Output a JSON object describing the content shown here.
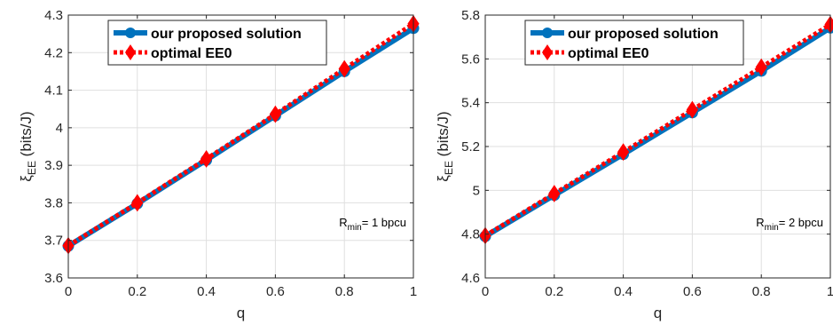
{
  "chart_data": [
    {
      "type": "line",
      "x": [
        0,
        0.2,
        0.4,
        0.6,
        0.8,
        1
      ],
      "xlim": [
        0,
        1
      ],
      "ylim": [
        3.6,
        4.3
      ],
      "xticks": [
        "0",
        "0.2",
        "0.4",
        "0.6",
        "0.8",
        "1"
      ],
      "yticks": [
        "3.6",
        "3.7",
        "3.8",
        "3.9",
        "4",
        "4.1",
        "4.2",
        "4.3"
      ],
      "xlabel": "q",
      "ylabel": "ξ",
      "ylabel_sub": "EE",
      "ylabel_unit": "(bits/J)",
      "grid": true,
      "legend_position": "top-center",
      "annotation": {
        "main": "R",
        "sub": "min",
        "rest": "= 1 bpcu"
      },
      "series": [
        {
          "name": "our proposed solution",
          "color": "#0072BD",
          "marker": "circle",
          "style": "solid",
          "values": [
            3.685,
            3.798,
            3.914,
            4.032,
            4.15,
            4.265
          ]
        },
        {
          "name": "optimal EE0",
          "color": "#FF0000",
          "marker": "diamond",
          "style": "dotted",
          "values": [
            3.686,
            3.8,
            3.917,
            4.036,
            4.157,
            4.277
          ]
        }
      ]
    },
    {
      "type": "line",
      "x": [
        0,
        0.2,
        0.4,
        0.6,
        0.8,
        1
      ],
      "xlim": [
        0,
        1
      ],
      "ylim": [
        4.6,
        5.8
      ],
      "xticks": [
        "0",
        "0.2",
        "0.4",
        "0.6",
        "0.8",
        "1"
      ],
      "yticks": [
        "4.6",
        "4.8",
        "5",
        "5.2",
        "5.4",
        "5.6",
        "5.8"
      ],
      "xlabel": "q",
      "ylabel": "ξ",
      "ylabel_sub": "EE",
      "ylabel_unit": "(bits/J)",
      "grid": true,
      "legend_position": "top-center",
      "annotation": {
        "main": "R",
        "sub": "min",
        "rest": "= 2 bpcu"
      },
      "series": [
        {
          "name": "our proposed solution",
          "color": "#0072BD",
          "marker": "circle",
          "style": "solid",
          "values": [
            4.79,
            4.978,
            5.165,
            5.355,
            5.545,
            5.742
          ]
        },
        {
          "name": "optimal EE0",
          "color": "#FF0000",
          "marker": "diamond",
          "style": "dotted",
          "values": [
            4.793,
            4.985,
            5.175,
            5.368,
            5.562,
            5.757
          ]
        }
      ]
    }
  ]
}
